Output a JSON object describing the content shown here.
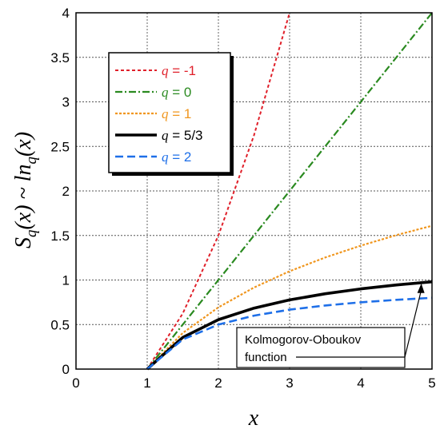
{
  "chart_data": {
    "type": "line",
    "xlabel": "x",
    "ylabel": "S_q(x) ~ ln_q(x)",
    "xlim": [
      0,
      5
    ],
    "ylim": [
      0,
      4
    ],
    "xticks": [
      "0",
      "1",
      "2",
      "3",
      "4",
      "5"
    ],
    "yticks": [
      "0",
      "0.5",
      "1",
      "1.5",
      "2",
      "2.5",
      "3",
      "3.5",
      "4"
    ],
    "grid": true,
    "legend_position": "top-left",
    "series": [
      {
        "name": "q = -1",
        "q": -1,
        "color": "#e0202a",
        "dash": "4,3",
        "width": 2,
        "x": [
          1,
          1.5,
          2,
          2.5,
          3
        ],
        "y": [
          0,
          0.625,
          1.5,
          2.625,
          4
        ]
      },
      {
        "name": "q = 0",
        "q": 0,
        "color": "#2a8a20",
        "dash": "9,3,2,3",
        "width": 2.2,
        "x": [
          1,
          2,
          3,
          4,
          5
        ],
        "y": [
          0,
          1,
          2,
          3,
          4
        ]
      },
      {
        "name": "q = 1",
        "q": 1,
        "color": "#f0961e",
        "dash": "3,2",
        "width": 2.2,
        "x": [
          1,
          1.5,
          2,
          2.5,
          3,
          3.5,
          4,
          4.5,
          5
        ],
        "y": [
          0,
          0.405,
          0.693,
          0.916,
          1.099,
          1.253,
          1.386,
          1.504,
          1.609
        ]
      },
      {
        "name": "q = 5/3",
        "q": 1.6667,
        "color": "#000000",
        "dash": "",
        "width": 3.6,
        "x": [
          1,
          1.5,
          2,
          2.5,
          3,
          3.5,
          4,
          4.5,
          5
        ],
        "y": [
          0,
          0.356,
          0.555,
          0.684,
          0.777,
          0.846,
          0.9,
          0.944,
          0.98
        ]
      },
      {
        "name": "q = 2",
        "q": 2,
        "color": "#1e6fe8",
        "dash": "10,5",
        "width": 2.6,
        "x": [
          1,
          1.5,
          2,
          2.5,
          3,
          3.5,
          4,
          4.5,
          5
        ],
        "y": [
          0,
          0.333,
          0.5,
          0.6,
          0.667,
          0.714,
          0.75,
          0.778,
          0.8
        ]
      }
    ],
    "legend": [
      {
        "prefix": "q",
        "text": " = -1",
        "color": "#e0202a"
      },
      {
        "prefix": "q",
        "text": " = 0",
        "color": "#2a8a20"
      },
      {
        "prefix": "q",
        "text": " = 1",
        "color": "#f0961e"
      },
      {
        "prefix": "q",
        "text": " = 5/3",
        "color": "#000000"
      },
      {
        "prefix": "q",
        "text": " = 2",
        "color": "#1e6fe8"
      }
    ],
    "annotation": {
      "line1": "Kolmogorov-Oboukov",
      "line2": "function",
      "target_x": 4.85,
      "target_y": 0.98
    }
  }
}
